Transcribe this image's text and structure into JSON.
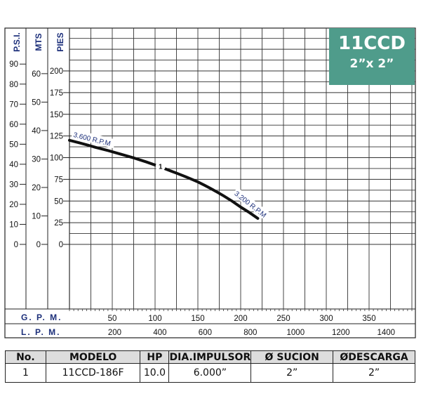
{
  "badge": {
    "model": "11CCD",
    "size": "2”x 2”",
    "color": "#4f9c8b"
  },
  "chart_data": {
    "type": "line",
    "title": "",
    "grid": true,
    "head_axes": [
      {
        "name": "P.S.I.",
        "ticks": [
          0,
          10,
          20,
          30,
          40,
          50,
          60,
          70,
          80,
          90
        ]
      },
      {
        "name": "MTS",
        "ticks": [
          0,
          10,
          20,
          30,
          40,
          50,
          60
        ]
      },
      {
        "name": "PIES",
        "ticks": [
          0,
          25,
          50,
          75,
          100,
          125,
          150,
          175,
          200
        ]
      }
    ],
    "flow_axes": [
      {
        "name": "G. P. M.",
        "ticks": [
          50,
          100,
          150,
          200,
          250,
          300,
          350
        ],
        "range": [
          0,
          375
        ]
      },
      {
        "name": "L. P. M.",
        "ticks": [
          200,
          400,
          600,
          800,
          1000,
          1200,
          1400
        ]
      }
    ],
    "ylim_pies": [
      0,
      200
    ],
    "series": [
      {
        "marker": "1",
        "x": [
          0,
          30,
          60,
          90,
          120,
          150,
          180,
          200,
          220
        ],
        "y": [
          120,
          112,
          104,
          95,
          84,
          72,
          56,
          43,
          30
        ],
        "start_label": "3.600 R.P.M",
        "end_label": "3.200 R.P.M",
        "color": "#111111"
      }
    ]
  },
  "table": {
    "headers": [
      "No.",
      "MODELO",
      "HP",
      "DIA.IMPULSOR",
      "Ø SUCION",
      "ØDESCARGA"
    ],
    "rows": [
      [
        "1",
        "11CCD-186F",
        "10.0",
        "6.000”",
        "2”",
        "2”"
      ]
    ]
  }
}
